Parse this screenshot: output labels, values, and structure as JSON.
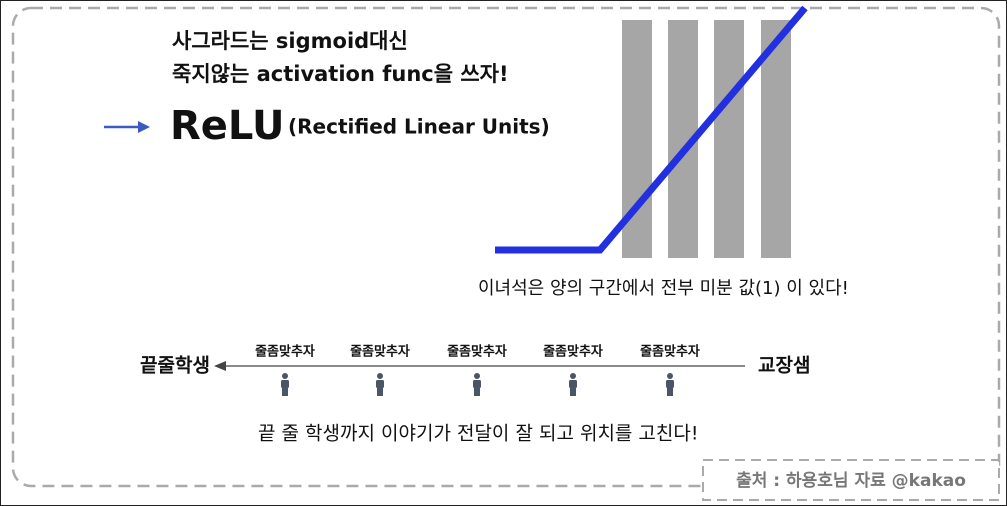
{
  "slide": {
    "heading_lines": [
      "사그라드는 sigmoid대신",
      "죽지않는 activation func을 쓰자!"
    ],
    "title": "ReLU",
    "title_note": "(Rectified Linear Units)",
    "graph_caption": "이녀석은 양의 구간에서 전부 미분 값(1) 이 있다!",
    "line_diagram": {
      "left_label": "끝줄학생",
      "right_label": "교장샘",
      "person_labels": [
        "줄좀맞추자",
        "줄좀맞추자",
        "줄좀맞추자",
        "줄좀맞추자",
        "줄좀맞추자"
      ]
    },
    "summary": "끝 줄 학생까지 이야기가 전달이 잘 되고 위치를 고친다!",
    "source": "출처 : 하용호님 자료 @kakao"
  }
}
